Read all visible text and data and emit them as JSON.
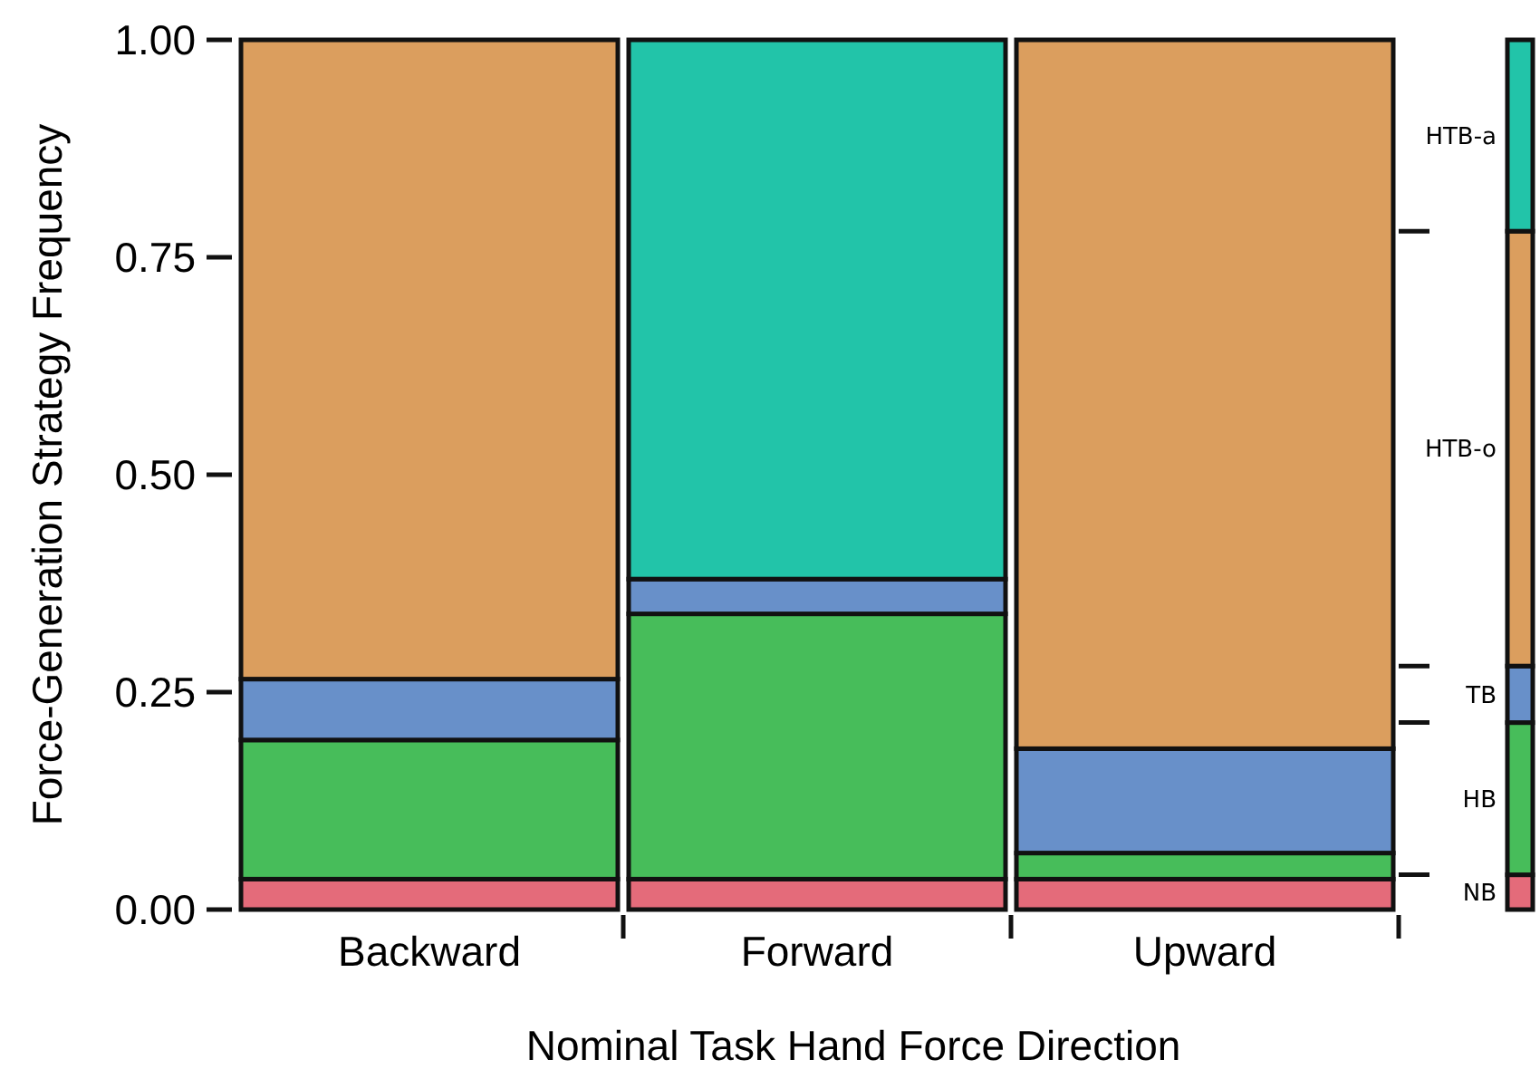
{
  "chart_data": {
    "type": "bar",
    "stacked": true,
    "xlabel": "Nominal Task Hand Force Direction",
    "ylabel": "Force-Generation Strategy Frequency",
    "categories": [
      "Backward",
      "Forward",
      "Upward",
      null
    ],
    "series": [
      {
        "name": "NB",
        "color": "#e46b7a",
        "values": [
          0.035,
          0.035,
          0.035,
          0.04
        ]
      },
      {
        "name": "HB",
        "color": "#47bd5a",
        "values": [
          0.16,
          0.305,
          0.03,
          0.175
        ]
      },
      {
        "name": "TB",
        "color": "#6890c9",
        "values": [
          0.07,
          0.04,
          0.12,
          0.065
        ]
      },
      {
        "name": "HTB-o",
        "color": "#db9e5e",
        "values": [
          0.735,
          0,
          0.815,
          0.5
        ]
      },
      {
        "name": "HTB-a",
        "color": "#22c4a9",
        "values": [
          0,
          0.62,
          0,
          0.22
        ]
      }
    ],
    "ylim": [
      0,
      1
    ],
    "yticks": [
      {
        "value": 0,
        "label": "0.00"
      },
      {
        "value": 0.25,
        "label": "0.25"
      },
      {
        "value": 0.5,
        "label": "0.50"
      },
      {
        "value": 0.75,
        "label": "0.75"
      },
      {
        "value": 1,
        "label": "1.00"
      }
    ],
    "grid": false,
    "legend": "right"
  }
}
